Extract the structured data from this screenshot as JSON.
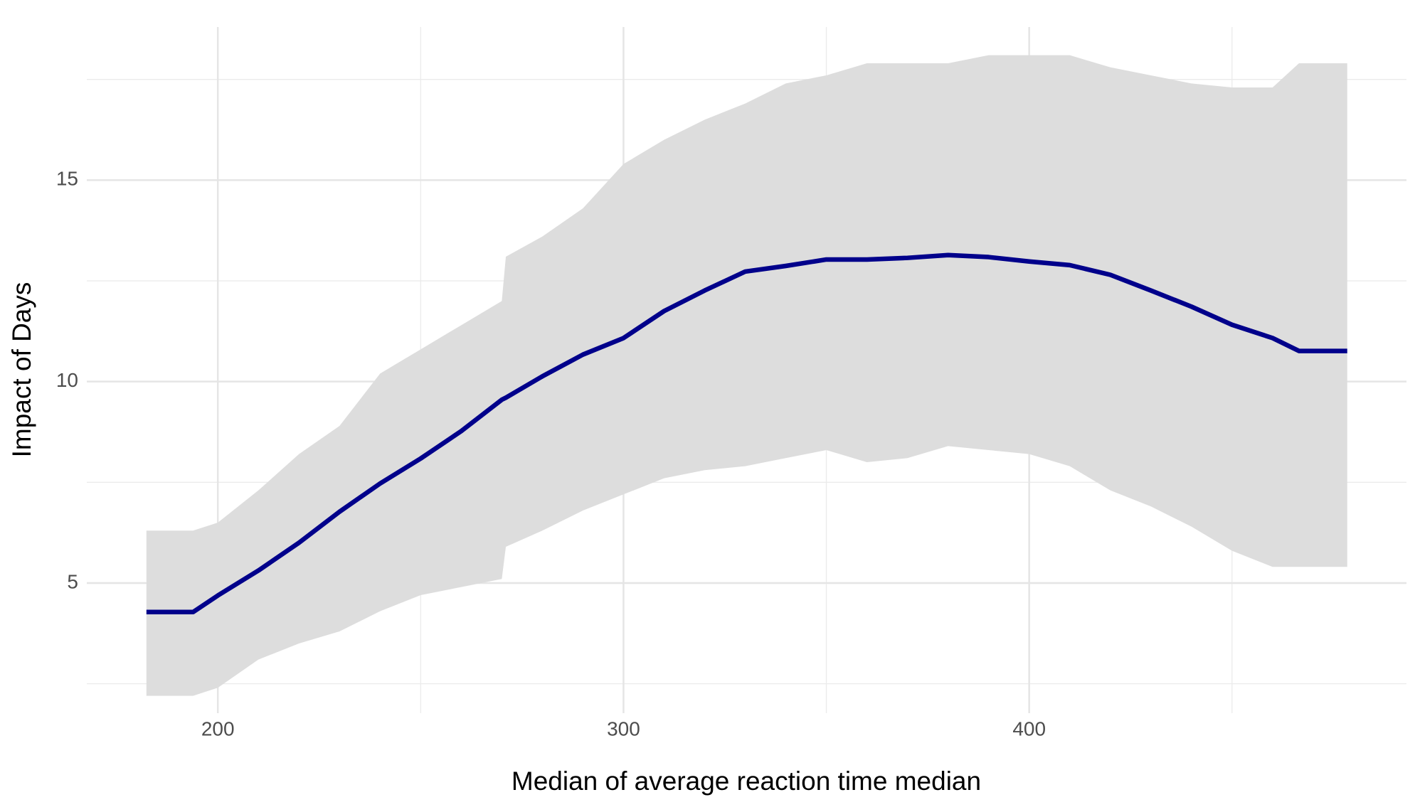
{
  "chart_data": {
    "type": "line",
    "x_label": "Median of average reaction time median",
    "y_label": "Impact of Days",
    "xlim": [
      167.7,
      493
    ],
    "ylim": [
      1.77,
      18.8
    ],
    "xticks": [
      200,
      300,
      400
    ],
    "yticks": [
      5,
      10,
      15
    ],
    "x_minor_grid": [
      250,
      350,
      450
    ],
    "y_minor_grid": [
      2.5,
      7.5,
      12.5,
      17.5
    ],
    "grid": true,
    "x": [
      182.4,
      193.9,
      200,
      210,
      220,
      230,
      240,
      250,
      260,
      270,
      271,
      280,
      290,
      300,
      310,
      320,
      330,
      340,
      350,
      360,
      370,
      380,
      390,
      400,
      410,
      420,
      430,
      440,
      450,
      460,
      466.5,
      478.4
    ],
    "series": [
      {
        "color": "#00008b",
        "band_color": "#dddddd",
        "values": [
          4.28,
          4.28,
          4.69,
          5.31,
          6.0,
          6.77,
          7.47,
          8.09,
          8.77,
          9.55,
          9.6,
          10.13,
          10.67,
          11.08,
          11.75,
          12.26,
          12.73,
          12.87,
          13.03,
          13.03,
          13.07,
          13.14,
          13.09,
          12.98,
          12.89,
          12.65,
          12.26,
          11.86,
          11.41,
          11.08,
          10.76,
          10.76
        ],
        "lower": [
          2.2,
          2.2,
          2.4,
          3.1,
          3.5,
          3.8,
          4.3,
          4.7,
          4.9,
          5.1,
          5.9,
          6.3,
          6.8,
          7.2,
          7.6,
          7.8,
          7.9,
          8.1,
          8.3,
          8.0,
          8.1,
          8.4,
          8.3,
          8.2,
          7.9,
          7.3,
          6.9,
          6.4,
          5.8,
          5.4,
          5.4,
          5.4
        ],
        "upper": [
          6.3,
          6.3,
          6.5,
          7.3,
          8.2,
          8.9,
          10.2,
          10.8,
          11.4,
          12.0,
          13.1,
          13.6,
          14.3,
          15.4,
          16.0,
          16.5,
          16.9,
          17.4,
          17.6,
          17.9,
          17.9,
          17.9,
          18.1,
          18.1,
          18.1,
          17.8,
          17.6,
          17.4,
          17.3,
          17.3,
          17.9,
          17.9
        ]
      }
    ]
  }
}
